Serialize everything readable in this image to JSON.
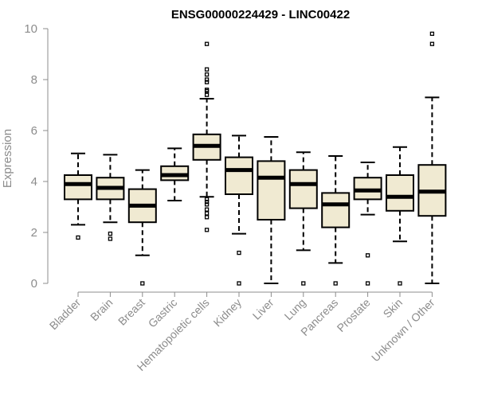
{
  "chart_data": {
    "type": "box",
    "title": "ENSG00000224429 - LINC00422",
    "xlabel": "",
    "ylabel": "Expression",
    "ylim": [
      0,
      10
    ],
    "yticks": [
      0,
      2,
      4,
      6,
      8,
      10
    ],
    "box_fill": "#f0ead2",
    "categories": [
      "Bladder",
      "Brain",
      "Breast",
      "Gastric",
      "Hematopoietic cells",
      "Kidney",
      "Liver",
      "Lung",
      "Pancreas",
      "Prostate",
      "Skin",
      "Unknown / Other"
    ],
    "boxes": [
      {
        "min": 2.3,
        "q1": 3.3,
        "median": 3.9,
        "q3": 4.25,
        "max": 5.1,
        "outliers": [
          1.8
        ]
      },
      {
        "min": 2.4,
        "q1": 3.3,
        "median": 3.75,
        "q3": 4.15,
        "max": 5.05,
        "outliers": [
          1.95,
          1.75
        ]
      },
      {
        "min": 1.1,
        "q1": 2.4,
        "median": 3.05,
        "q3": 3.7,
        "max": 4.45,
        "outliers": [
          0.0
        ]
      },
      {
        "min": 3.25,
        "q1": 4.05,
        "median": 4.25,
        "q3": 4.6,
        "max": 5.3,
        "outliers": []
      },
      {
        "min": 3.4,
        "q1": 4.85,
        "median": 5.4,
        "q3": 5.85,
        "max": 7.25,
        "outliers": [
          9.4,
          8.4,
          8.2,
          8.0,
          7.9,
          7.6,
          7.55,
          7.4,
          3.3,
          3.2,
          3.1,
          2.9,
          2.75,
          2.6,
          2.1
        ]
      },
      {
        "min": 1.95,
        "q1": 3.5,
        "median": 4.45,
        "q3": 4.95,
        "max": 5.8,
        "outliers": [
          1.2,
          0.0
        ]
      },
      {
        "min": 0.0,
        "q1": 2.5,
        "median": 4.15,
        "q3": 4.8,
        "max": 5.75,
        "outliers": []
      },
      {
        "min": 1.3,
        "q1": 2.95,
        "median": 3.9,
        "q3": 4.45,
        "max": 5.15,
        "outliers": [
          0.0
        ]
      },
      {
        "min": 0.8,
        "q1": 2.2,
        "median": 3.1,
        "q3": 3.55,
        "max": 5.0,
        "outliers": [
          0.0
        ]
      },
      {
        "min": 2.7,
        "q1": 3.3,
        "median": 3.65,
        "q3": 4.15,
        "max": 4.75,
        "outliers": [
          1.1,
          0.0
        ]
      },
      {
        "min": 1.65,
        "q1": 2.85,
        "median": 3.4,
        "q3": 4.25,
        "max": 5.35,
        "outliers": [
          0.0
        ]
      },
      {
        "min": 0.0,
        "q1": 2.65,
        "median": 3.6,
        "q3": 4.65,
        "max": 7.3,
        "outliers": [
          9.8,
          9.4
        ]
      }
    ]
  }
}
